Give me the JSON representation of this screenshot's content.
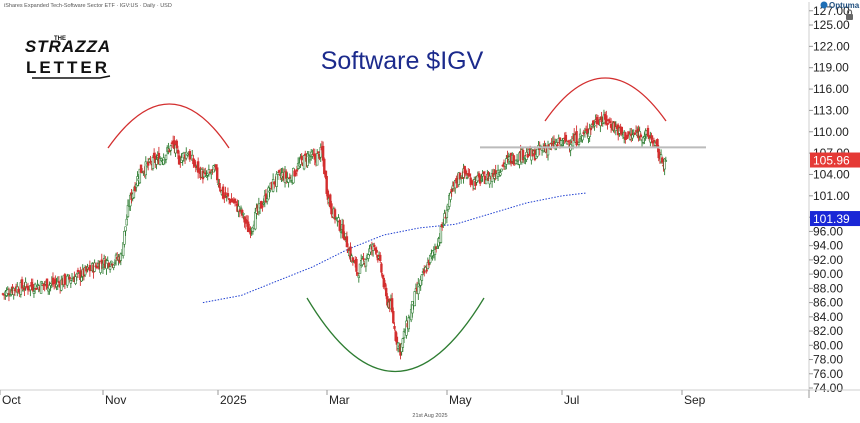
{
  "header": {
    "info_text": "iShares Expanded Tech-Software Sector ETF · IGV:US · Daily · USD",
    "brand": "Optuma",
    "date_label": "21st Aug 2025"
  },
  "logo": {
    "line1": "THE",
    "line2": "STRAZZA",
    "line3": "LETTER"
  },
  "colors": {
    "up": "#2e7d32",
    "down": "#d32f2f",
    "ma": "#1f3fd1",
    "title": "#1b2a8c",
    "price_badge": "#e53935",
    "ma_badge": "#1a27d6",
    "resistance": "#bbbbbb"
  },
  "chart_data": {
    "type": "candlestick",
    "title": "Software $IGV",
    "y_axis": {
      "side": "right",
      "ylim": [
        73.5,
        128.5
      ],
      "tick_labels": [
        "74.00",
        "76.00",
        "78.00",
        "80.00",
        "82.00",
        "84.00",
        "86.00",
        "88.00",
        "90.00",
        "92.00",
        "94.00",
        "96.00",
        "98.00",
        "101.00",
        "104.00",
        "107.00",
        "110.00",
        "113.00",
        "116.00",
        "119.00",
        "122.00",
        "125.00",
        "127.00"
      ]
    },
    "x_axis": {
      "tick_labels": [
        "Oct",
        "Nov",
        "2025",
        "Mar",
        "May",
        "Jul",
        "Sep"
      ]
    },
    "last_price": {
      "label": "105.96",
      "value": 105.96
    },
    "moving_average": {
      "label": "101.39",
      "value": 101.39,
      "points": [
        [
          168,
          86.0
        ],
        [
          200,
          87.0
        ],
        [
          230,
          89.0
        ],
        [
          260,
          91.0
        ],
        [
          290,
          93.5
        ],
        [
          320,
          95.5
        ],
        [
          350,
          96.5
        ],
        [
          380,
          97.0
        ],
        [
          410,
          98.5
        ],
        [
          440,
          100.0
        ],
        [
          470,
          101.0
        ],
        [
          490,
          101.39
        ]
      ]
    },
    "resistance_level": 107.8,
    "annotations": [
      {
        "type": "arc-top",
        "color": "red",
        "label": "rounded top Nov–Dec 2024"
      },
      {
        "type": "arc-bottom",
        "color": "green",
        "label": "rounded bottom Apr 2025"
      },
      {
        "type": "arc-top",
        "color": "red",
        "label": "rounded top Jul–Aug 2025"
      }
    ],
    "price_anchors": [
      [
        0,
        87.2
      ],
      [
        10,
        88.0
      ],
      [
        25,
        88.3
      ],
      [
        45,
        88.7
      ],
      [
        65,
        89.8
      ],
      [
        82,
        91.6
      ],
      [
        92,
        91.8
      ],
      [
        99,
        92.4
      ],
      [
        106,
        100.0
      ],
      [
        115,
        104.5
      ],
      [
        125,
        105.6
      ],
      [
        135,
        106.6
      ],
      [
        143,
        108.2
      ],
      [
        148,
        106.1
      ],
      [
        155,
        107.2
      ],
      [
        162,
        105.0
      ],
      [
        170,
        103.6
      ],
      [
        178,
        104.6
      ],
      [
        185,
        101.0
      ],
      [
        193,
        100.3
      ],
      [
        200,
        98.7
      ],
      [
        207,
        96.0
      ],
      [
        213,
        98.5
      ],
      [
        220,
        100.5
      ],
      [
        227,
        102.8
      ],
      [
        234,
        104.0
      ],
      [
        241,
        103.3
      ],
      [
        248,
        105.2
      ],
      [
        256,
        106.6
      ],
      [
        262,
        106.2
      ],
      [
        268,
        107.2
      ],
      [
        272,
        102.0
      ],
      [
        276,
        99.0
      ],
      [
        281,
        97.5
      ],
      [
        287,
        95.5
      ],
      [
        292,
        92.6
      ],
      [
        298,
        90.2
      ],
      [
        303,
        91.8
      ],
      [
        308,
        93.3
      ],
      [
        313,
        94.0
      ],
      [
        318,
        90.4
      ],
      [
        322,
        86.5
      ],
      [
        326,
        85.5
      ],
      [
        330,
        81.2
      ],
      [
        334,
        79.3
      ],
      [
        338,
        82.1
      ],
      [
        342,
        84.2
      ],
      [
        346,
        86.8
      ],
      [
        350,
        88.5
      ],
      [
        354,
        90.1
      ],
      [
        358,
        91.8
      ],
      [
        363,
        93.5
      ],
      [
        368,
        96.0
      ],
      [
        373,
        99.2
      ],
      [
        378,
        101.8
      ],
      [
        383,
        103.8
      ],
      [
        388,
        104.2
      ],
      [
        395,
        103.0
      ],
      [
        402,
        103.3
      ],
      [
        410,
        103.7
      ],
      [
        418,
        105.0
      ],
      [
        425,
        106.0
      ],
      [
        432,
        106.5
      ],
      [
        438,
        106.9
      ],
      [
        446,
        106.7
      ],
      [
        452,
        107.6
      ],
      [
        460,
        107.9
      ],
      [
        468,
        108.4
      ],
      [
        475,
        108.7
      ],
      [
        482,
        108.9
      ],
      [
        488,
        109.5
      ],
      [
        494,
        110.7
      ],
      [
        500,
        111.8
      ],
      [
        507,
        111.5
      ],
      [
        513,
        110.9
      ],
      [
        520,
        109.6
      ],
      [
        527,
        109.3
      ],
      [
        533,
        109.8
      ],
      [
        540,
        109.5
      ],
      [
        546,
        108.9
      ],
      [
        553,
        106.0
      ],
      [
        557,
        105.96
      ]
    ]
  }
}
